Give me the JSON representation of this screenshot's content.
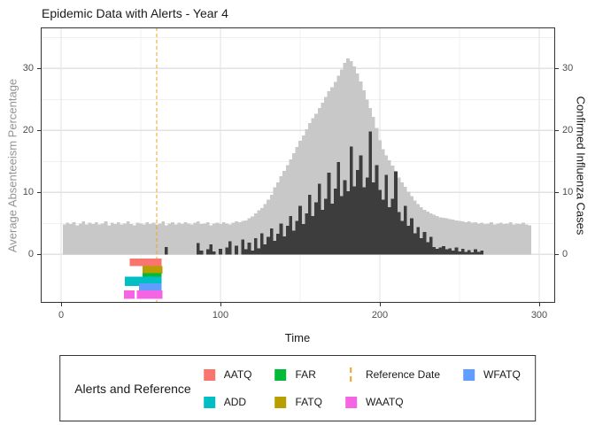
{
  "title": "Epidemic Data with Alerts - Year 4",
  "axes": {
    "x": {
      "title": "Time",
      "major_ticks": [
        0,
        100,
        200,
        300
      ],
      "minor_ticks": [
        50,
        150,
        250
      ],
      "range": [
        -12.8,
        310
      ]
    },
    "y_left": {
      "title": "Average Absenteeism Percentage",
      "major_ticks": [
        0,
        10,
        20,
        30
      ],
      "minor_ticks": [
        5,
        15,
        25,
        35
      ],
      "range": [
        -7.8,
        36.3
      ]
    },
    "y_right": {
      "title": "Confirmed Influenza Cases",
      "major_ticks": [
        0,
        10,
        20,
        30
      ],
      "range": [
        -7.8,
        36.3
      ]
    }
  },
  "legend": {
    "title": "Alerts and Reference",
    "entries": [
      {
        "label": "AATQ",
        "key": "square",
        "color": "#F8766D"
      },
      {
        "label": "ADD",
        "key": "square",
        "color": "#00BFC4"
      },
      {
        "label": "FAR",
        "key": "square",
        "color": "#00BA38"
      },
      {
        "label": "FATQ",
        "key": "square",
        "color": "#B79F00"
      },
      {
        "label": "Reference Date",
        "key": "dashed-line",
        "color": "#EEA320"
      },
      {
        "label": "WAATQ",
        "key": "square",
        "color": "#F564E3"
      },
      {
        "label": "WFATQ",
        "key": "square",
        "color": "#619CFF"
      }
    ]
  },
  "colors": {
    "absenteeism_fill": "#c8c8c8",
    "influenza_fill": "#3d3d3d",
    "reference_line": "#EEA320",
    "grid_major": "#e2e2e2",
    "grid_minor": "#f0f0f0",
    "panel_border": "#333333",
    "tick_label": "#4d4d4d",
    "left_axis_title": "#949494",
    "right_axis_title": "#1a1a1a"
  },
  "chart_data": {
    "type": "bar",
    "title": "Epidemic Data with Alerts - Year 4",
    "xlabel": "Time",
    "x_start": 0,
    "x_step": 2,
    "x_end": 300,
    "grid": true,
    "legend_position": "bottom",
    "reference_date": 60,
    "series": [
      {
        "name": "Average Absenteeism Percentage",
        "axis": "left",
        "style": "area-bars",
        "color": "#c8c8c8",
        "values": [
          0,
          4.8,
          5.1,
          4.9,
          5.2,
          4.7,
          5.0,
          5.3,
          4.8,
          5.1,
          4.9,
          5.2,
          4.8,
          5.0,
          5.3,
          4.7,
          5.1,
          4.9,
          5.2,
          4.8,
          5.0,
          5.3,
          4.9,
          4.7,
          5.1,
          5.0,
          4.8,
          5.2,
          4.9,
          5.1,
          4.8,
          5.0,
          5.3,
          4.7,
          5.0,
          5.2,
          4.8,
          5.1,
          4.9,
          5.2,
          5.0,
          4.8,
          5.1,
          5.3,
          4.9,
          5.0,
          5.2,
          4.7,
          5.0,
          5.1,
          4.9,
          5.2,
          5.0,
          4.8,
          5.1,
          5.3,
          5.2,
          5.4,
          5.5,
          5.8,
          6.1,
          6.6,
          7.1,
          7.5,
          8.1,
          8.8,
          9.6,
          10.8,
          11.6,
          12.6,
          13.5,
          14.4,
          15.3,
          16.3,
          17.3,
          18.3,
          19.2,
          20.2,
          21.2,
          22.0,
          22.7,
          23.6,
          24.5,
          25.4,
          26.3,
          27.0,
          27.8,
          28.8,
          29.8,
          30.9,
          31.6,
          31.2,
          30.3,
          29.2,
          27.9,
          26.5,
          25.0,
          23.6,
          22.2,
          20.4,
          18.4,
          17.0,
          16.0,
          15.2,
          14.3,
          13.3,
          12.4,
          11.6,
          10.9,
          10.1,
          9.4,
          8.7,
          8.1,
          7.6,
          7.2,
          6.9,
          6.6,
          6.4,
          6.2,
          6.0,
          5.9,
          5.8,
          5.7,
          5.6,
          5.5,
          5.4,
          5.3,
          5.2,
          5.3,
          5.1,
          5.2,
          5.0,
          5.1,
          4.9,
          5.0,
          5.2,
          4.8,
          5.0,
          5.1,
          4.9,
          5.0,
          5.2,
          4.8,
          5.0,
          4.9,
          5.1,
          4.8,
          4.7,
          0,
          0,
          0
        ]
      },
      {
        "name": "Confirmed Influenza Cases",
        "axis": "right",
        "style": "bars",
        "color": "#3d3d3d",
        "values": [
          0,
          0,
          0,
          0,
          0,
          0,
          0,
          0,
          0,
          0,
          0,
          0,
          0,
          0,
          0,
          0,
          0,
          0,
          0,
          0,
          0,
          0,
          0,
          0,
          0,
          0,
          0,
          0,
          0,
          0,
          0,
          0,
          0,
          1.2,
          0,
          0,
          0,
          0,
          0,
          0,
          0,
          0,
          0,
          1.8,
          0.6,
          0,
          0.8,
          1.6,
          0.5,
          0,
          0.9,
          0,
          1.1,
          2.1,
          0,
          1.4,
          0,
          2.4,
          0.8,
          1.9,
          0.6,
          2.6,
          1.0,
          3.4,
          1.6,
          2.8,
          4.2,
          2.2,
          3.3,
          5.0,
          2.9,
          4.6,
          6.2,
          3.8,
          5.4,
          7.8,
          4.9,
          6.6,
          9.6,
          6.2,
          8.4,
          11.4,
          7.2,
          9.0,
          13.2,
          8.2,
          10.6,
          14.9,
          9.4,
          12.0,
          10.2,
          17.4,
          11.0,
          13.6,
          16.0,
          10.8,
          12.4,
          19.8,
          11.6,
          14.4,
          10.4,
          8.8,
          12.8,
          7.6,
          9.0,
          13.4,
          6.8,
          5.4,
          7.8,
          4.6,
          5.8,
          3.4,
          4.4,
          2.6,
          3.6,
          2.0,
          2.8,
          1.2,
          0.9,
          1.1,
          1.3,
          0.8,
          1.0,
          0.6,
          1.1,
          0.5,
          0.9,
          0.4,
          0.7,
          0.3,
          0.8,
          0.4,
          0.6,
          0,
          0,
          0,
          0,
          0,
          0,
          0,
          0,
          0,
          0,
          0,
          0,
          0,
          0,
          0,
          0,
          0,
          0
        ]
      }
    ],
    "alerts": [
      {
        "name": "AATQ",
        "color": "#F8766D",
        "y": [
          -0.7,
          -1.9
        ],
        "segments": [
          [
            43,
            63
          ]
        ]
      },
      {
        "name": "FATQ",
        "color": "#B79F00",
        "y": [
          -1.9,
          -3.1
        ],
        "segments": [
          [
            51,
            63.5
          ]
        ]
      },
      {
        "name": "FAR",
        "color": "#00BA38",
        "y": [
          -3.0,
          -4.1
        ],
        "segments": [
          [
            51,
            63
          ]
        ]
      },
      {
        "name": "ADD",
        "color": "#00BFC4",
        "y": [
          -3.6,
          -5.1
        ],
        "segments": [
          [
            40,
            63
          ]
        ]
      },
      {
        "name": "WFATQ",
        "color": "#619CFF",
        "y": [
          -4.7,
          -6.0
        ],
        "segments": [
          [
            49,
            63
          ]
        ]
      },
      {
        "name": "WAATQ",
        "color": "#F564E3",
        "y": [
          -5.8,
          -7.2
        ],
        "segments": [
          [
            39.5,
            46
          ],
          [
            47.5,
            63.5
          ]
        ]
      }
    ]
  }
}
